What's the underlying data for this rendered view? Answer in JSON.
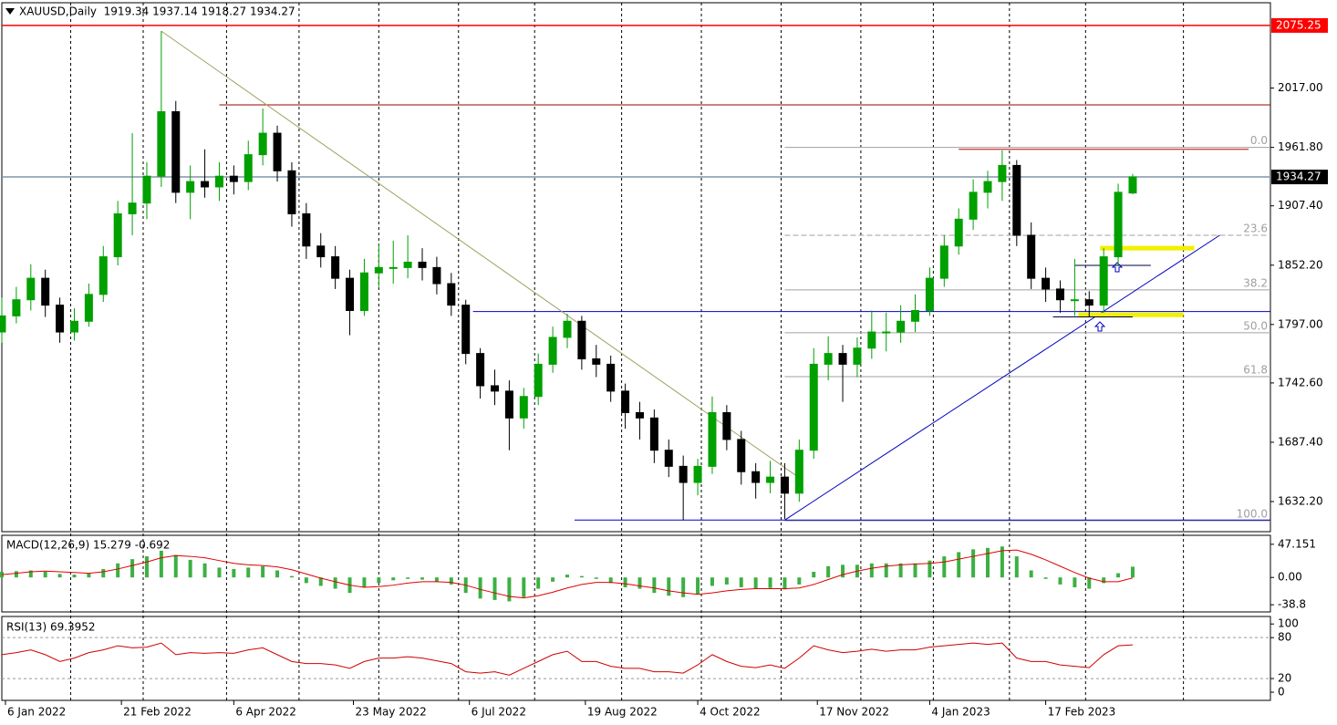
{
  "chart_data": [
    {
      "type": "candlestick",
      "title": "XAUUSD,Daily  1919.34 1937.14 1918.27 1934.27",
      "up_color": "#00a000",
      "down_color": "#000000",
      "xlim": [
        0,
        350
      ],
      "x": [
        0,
        4,
        8,
        12,
        16,
        20,
        24,
        28,
        32,
        36,
        40,
        44,
        48,
        52,
        56,
        60,
        64,
        68,
        72,
        76,
        80,
        84,
        88,
        92,
        96,
        100,
        104,
        108,
        112,
        116,
        120,
        124,
        128,
        132,
        136,
        140,
        144,
        148,
        152,
        156,
        160,
        164,
        168,
        172,
        176,
        180,
        184,
        188,
        192,
        196,
        200,
        204,
        208,
        212,
        216,
        220,
        224,
        228,
        232,
        236,
        240,
        244,
        248,
        252,
        256,
        260,
        264,
        268,
        272,
        276,
        280,
        284,
        288,
        292,
        296,
        300,
        304,
        308,
        312
      ],
      "ohlc": [
        [
          1790,
          1822,
          1780,
          1805
        ],
        [
          1805,
          1832,
          1798,
          1820
        ],
        [
          1820,
          1853,
          1810,
          1840
        ],
        [
          1840,
          1848,
          1804,
          1815
        ],
        [
          1815,
          1822,
          1780,
          1790
        ],
        [
          1790,
          1812,
          1782,
          1800
        ],
        [
          1800,
          1835,
          1795,
          1825
        ],
        [
          1825,
          1870,
          1818,
          1860
        ],
        [
          1860,
          1912,
          1852,
          1900
        ],
        [
          1900,
          1975,
          1880,
          1910
        ],
        [
          1910,
          1948,
          1895,
          1935
        ],
        [
          1935,
          2070,
          1925,
          1995
        ],
        [
          1995,
          2005,
          1910,
          1920
        ],
        [
          1920,
          1945,
          1895,
          1930
        ],
        [
          1930,
          1960,
          1915,
          1925
        ],
        [
          1925,
          1948,
          1912,
          1935
        ],
        [
          1935,
          1945,
          1918,
          1930
        ],
        [
          1930,
          1968,
          1922,
          1955
        ],
        [
          1955,
          1998,
          1945,
          1975
        ],
        [
          1975,
          1982,
          1930,
          1940
        ],
        [
          1940,
          1948,
          1888,
          1900
        ],
        [
          1900,
          1910,
          1858,
          1870
        ],
        [
          1870,
          1882,
          1850,
          1860
        ],
        [
          1860,
          1870,
          1830,
          1840
        ],
        [
          1840,
          1848,
          1787,
          1810
        ],
        [
          1810,
          1858,
          1805,
          1845
        ],
        [
          1845,
          1872,
          1832,
          1850
        ],
        [
          1850,
          1875,
          1835,
          1850
        ],
        [
          1850,
          1880,
          1840,
          1855
        ],
        [
          1855,
          1868,
          1838,
          1850
        ],
        [
          1850,
          1860,
          1825,
          1835
        ],
        [
          1835,
          1845,
          1805,
          1815
        ],
        [
          1815,
          1820,
          1760,
          1770
        ],
        [
          1770,
          1775,
          1728,
          1740
        ],
        [
          1740,
          1755,
          1722,
          1735
        ],
        [
          1735,
          1745,
          1680,
          1710
        ],
        [
          1710,
          1738,
          1700,
          1730
        ],
        [
          1730,
          1770,
          1722,
          1760
        ],
        [
          1760,
          1795,
          1752,
          1785
        ],
        [
          1785,
          1807,
          1775,
          1800
        ],
        [
          1800,
          1805,
          1755,
          1765
        ],
        [
          1765,
          1778,
          1748,
          1760
        ],
        [
          1760,
          1768,
          1725,
          1735
        ],
        [
          1735,
          1742,
          1700,
          1715
        ],
        [
          1715,
          1725,
          1690,
          1710
        ],
        [
          1710,
          1718,
          1668,
          1680
        ],
        [
          1680,
          1690,
          1655,
          1665
        ],
        [
          1665,
          1675,
          1615,
          1650
        ],
        [
          1650,
          1672,
          1638,
          1665
        ],
        [
          1665,
          1730,
          1658,
          1715
        ],
        [
          1715,
          1722,
          1680,
          1690
        ],
        [
          1690,
          1698,
          1648,
          1660
        ],
        [
          1660,
          1668,
          1635,
          1650
        ],
        [
          1650,
          1670,
          1640,
          1655
        ],
        [
          1655,
          1668,
          1616,
          1640
        ],
        [
          1640,
          1690,
          1632,
          1680
        ],
        [
          1680,
          1775,
          1672,
          1760
        ],
        [
          1760,
          1786,
          1745,
          1770
        ],
        [
          1770,
          1778,
          1725,
          1760
        ],
        [
          1760,
          1785,
          1748,
          1775
        ],
        [
          1775,
          1810,
          1765,
          1790
        ],
        [
          1790,
          1808,
          1772,
          1790
        ],
        [
          1790,
          1815,
          1780,
          1800
        ],
        [
          1800,
          1825,
          1790,
          1810
        ],
        [
          1810,
          1850,
          1805,
          1840
        ],
        [
          1840,
          1880,
          1832,
          1870
        ],
        [
          1870,
          1905,
          1862,
          1895
        ],
        [
          1895,
          1932,
          1885,
          1920
        ],
        [
          1920,
          1940,
          1905,
          1930
        ],
        [
          1930,
          1959,
          1912,
          1945
        ],
        [
          1945,
          1950,
          1870,
          1880
        ],
        [
          1880,
          1892,
          1830,
          1840
        ],
        [
          1840,
          1850,
          1818,
          1830
        ],
        [
          1830,
          1838,
          1808,
          1820
        ],
        [
          1820,
          1858,
          1805,
          1820
        ],
        [
          1820,
          1828,
          1804,
          1815
        ],
        [
          1815,
          1868,
          1808,
          1860
        ],
        [
          1860,
          1928,
          1852,
          1920
        ],
        [
          1919.34,
          1937.14,
          1918.27,
          1934.27
        ]
      ],
      "ylim": [
        1604.2,
        2096.4
      ],
      "yticks": [
        {
          "value": 1632.2,
          "label": "1632.20"
        },
        {
          "value": 1687.4,
          "label": "1687.40"
        },
        {
          "value": 1742.6,
          "label": "1742.60"
        },
        {
          "value": 1797.0,
          "label": "1797.00"
        },
        {
          "value": 1852.2,
          "label": "1852.20"
        },
        {
          "value": 1907.4,
          "label": "1907.40"
        },
        {
          "value": 1961.8,
          "label": "1961.80"
        },
        {
          "value": 2017.0,
          "label": "2017.00"
        }
      ],
      "xticks": [
        {
          "value": 1,
          "label": "6 Jan 2022"
        },
        {
          "value": 33,
          "label": "21 Feb 2022"
        },
        {
          "value": 64,
          "label": "6 Apr 2022"
        },
        {
          "value": 97,
          "label": "23 May 2022"
        },
        {
          "value": 129,
          "label": "6 Jul 2022"
        },
        {
          "value": 161,
          "label": "19 Aug 2022"
        },
        {
          "value": 192,
          "label": "4 Oct 2022"
        },
        {
          "value": 225,
          "label": "17 Nov 2022"
        },
        {
          "value": 256,
          "label": "4 Jan 2023"
        },
        {
          "value": 288,
          "label": "17 Feb 2023"
        }
      ],
      "xgrid": [
        19,
        39,
        62,
        82,
        104,
        126,
        147,
        171,
        193,
        215,
        237,
        257,
        278,
        299,
        326
      ],
      "price_labels": [
        {
          "value": 2075.25,
          "label": "2075.25",
          "color": "#ff0000",
          "line_color": "#ff0000"
        },
        {
          "value": 1934.27,
          "label": "1934.27",
          "color": "#000000",
          "line_color": "#8096a8"
        }
      ],
      "drawings": [
        {
          "x": [
            60,
            350
          ],
          "y": [
            2001.4,
            2001.4
          ],
          "color": "#a00000"
        },
        {
          "x": [
            264,
            344
          ],
          "y": [
            1960.0,
            1960.0
          ],
          "color": "#c00000"
        },
        {
          "x": [
            130,
            350
          ],
          "y": [
            1809.0,
            1809.0
          ],
          "color": "#0000c0"
        },
        {
          "x": [
            158,
            350
          ],
          "y": [
            1615.0,
            1615.0
          ],
          "color": "#0000c0"
        },
        {
          "x": [
            216,
            336
          ],
          "y": [
            1615.0,
            1880.0
          ],
          "color": "#0000c0"
        },
        {
          "x": [
            44,
            221
          ],
          "y": [
            2070.0,
            1652.0
          ],
          "color": "#a0a060"
        },
        {
          "x": [
            303,
            329
          ],
          "y": [
            1868.0,
            1868.0
          ],
          "color": "#f0f000",
          "width": 5
        },
        {
          "x": [
            297,
            326
          ],
          "y": [
            1806.0,
            1806.0
          ],
          "color": "#f0f000",
          "width": 5
        },
        {
          "x": [
            296,
            317
          ],
          "y": [
            1852.0,
            1852.0
          ],
          "color": "#000040"
        },
        {
          "x": [
            290,
            312
          ],
          "y": [
            1804.0,
            1804.0
          ],
          "color": "#000040"
        }
      ],
      "fib": {
        "x": [
          216,
          350
        ],
        "color": "#a0a0a0",
        "levels": [
          {
            "label": "0.0",
            "value": 1961.8
          },
          {
            "label": "23.6",
            "value": 1880.0
          },
          {
            "label": "38.2",
            "value": 1829.2
          },
          {
            "label": "50.0",
            "value": 1789.3
          },
          {
            "label": "61.8",
            "value": 1748.5
          },
          {
            "label": "100.0",
            "value": 1614.4
          }
        ]
      }
    },
    {
      "type": "macd",
      "title": "MACD(12,26,9) 15.279 -0.692",
      "hist_color": "#3cb043",
      "signal_color": "#e00000",
      "histogram": [
        8,
        9,
        10,
        8,
        5,
        4,
        6,
        12,
        20,
        26,
        30,
        38,
        32,
        25,
        20,
        14,
        12,
        14,
        16,
        10,
        2,
        -8,
        -12,
        -16,
        -22,
        -14,
        -8,
        -4,
        -2,
        -3,
        -6,
        -10,
        -22,
        -30,
        -32,
        -34,
        -28,
        -16,
        -6,
        4,
        2,
        -2,
        -8,
        -14,
        -16,
        -22,
        -26,
        -28,
        -24,
        -12,
        -10,
        -14,
        -16,
        -15,
        -17,
        -10,
        8,
        16,
        18,
        18,
        20,
        20,
        20,
        20,
        24,
        30,
        36,
        40,
        42,
        44,
        30,
        10,
        -2,
        -10,
        -14,
        -16,
        -8,
        6,
        15.279
      ],
      "signal": [
        4,
        6,
        8,
        9,
        8,
        7,
        6,
        8,
        12,
        17,
        22,
        28,
        31,
        30,
        28,
        24,
        20,
        18,
        17,
        15,
        11,
        5,
        -1,
        -6,
        -11,
        -14,
        -13,
        -11,
        -8,
        -6,
        -6,
        -7,
        -11,
        -17,
        -22,
        -27,
        -29,
        -26,
        -21,
        -15,
        -10,
        -7,
        -7,
        -9,
        -12,
        -15,
        -19,
        -22,
        -24,
        -22,
        -19,
        -17,
        -16,
        -16,
        -16,
        -15,
        -10,
        -3,
        4,
        9,
        13,
        16,
        18,
        19,
        20,
        22,
        26,
        30,
        34,
        38,
        39,
        33,
        25,
        16,
        7,
        -1,
        -6,
        -6,
        -0.692
      ],
      "ylim": [
        -49.0,
        59.9
      ],
      "yticks": [
        47.151,
        {
          "value": 0,
          "label": "0.00"
        },
        -38.8
      ]
    },
    {
      "type": "line",
      "title": "RSI(13) 69.3952",
      "color": "#d00000",
      "values": [
        55,
        58,
        62,
        55,
        45,
        50,
        58,
        62,
        68,
        65,
        66,
        72,
        55,
        58,
        57,
        58,
        57,
        62,
        65,
        55,
        45,
        42,
        42,
        40,
        35,
        45,
        50,
        50,
        52,
        50,
        46,
        42,
        30,
        28,
        30,
        25,
        35,
        45,
        55,
        60,
        45,
        45,
        38,
        35,
        35,
        30,
        30,
        28,
        40,
        55,
        45,
        38,
        36,
        40,
        35,
        50,
        68,
        62,
        58,
        60,
        63,
        60,
        62,
        62,
        66,
        68,
        70,
        72,
        70,
        72,
        50,
        45,
        45,
        40,
        38,
        36,
        55,
        68,
        69.3952
      ],
      "ylim": [
        -12,
        111
      ],
      "yticks": [
        100,
        80,
        20,
        0
      ],
      "levels": [
        80,
        20
      ]
    }
  ]
}
